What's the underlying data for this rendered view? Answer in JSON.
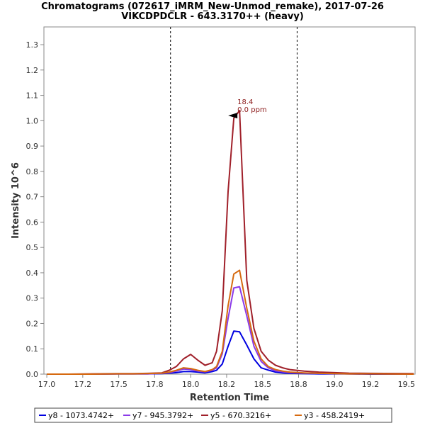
{
  "chart_data": {
    "type": "line",
    "title": "Chromatograms (072617_iMRM_New-Unmod_remake), 2017-07-26",
    "subtitle": "VIKCDPDCLR - 643.3170++ (heavy)",
    "xlabel": "Retention Time",
    "ylabel": "Intensity 10^6",
    "xlim": [
      16.98,
      19.56
    ],
    "ylim": [
      0,
      1.37
    ],
    "x_ticks": [
      "17.0",
      "17.2",
      "17.5",
      "17.8",
      "18.0",
      "18.2",
      "18.5",
      "18.8",
      "19.0",
      "19.2",
      "19.5"
    ],
    "x_tick_values": [
      17.0,
      17.25,
      17.5,
      17.75,
      18.0,
      18.25,
      18.5,
      18.75,
      19.0,
      19.25,
      19.5
    ],
    "y_ticks": [
      "0.0",
      "0.1",
      "0.2",
      "0.3",
      "0.4",
      "0.5",
      "0.6",
      "0.7",
      "0.8",
      "0.9",
      "1.0",
      "1.1",
      "1.2",
      "1.3"
    ],
    "y_tick_values": [
      0.0,
      0.1,
      0.2,
      0.3,
      0.4,
      0.5,
      0.6,
      0.7,
      0.8,
      0.9,
      1.0,
      1.1,
      1.2,
      1.3
    ],
    "integration_bounds": [
      17.86,
      18.74
    ],
    "peak_annotation": {
      "x": 18.32,
      "y": 1.02,
      "label": "18.4",
      "ppm": "0.0 ppm"
    },
    "grid": false,
    "legend_position": "bottom",
    "series": [
      {
        "name": "y8 - 1073.4742+",
        "color": "#0000e0",
        "x": [
          17.0,
          17.15,
          17.3,
          17.5,
          17.6,
          17.7,
          17.8,
          17.85,
          17.9,
          17.95,
          18.0,
          18.05,
          18.1,
          18.15,
          18.18,
          18.22,
          18.26,
          18.3,
          18.34,
          18.39,
          18.44,
          18.49,
          18.54,
          18.59,
          18.64,
          18.69,
          18.79,
          18.89,
          19.0,
          19.1,
          19.25,
          19.55
        ],
        "values": [
          0.0,
          0.0,
          0.0,
          0.001,
          0.001,
          0.001,
          0.002,
          0.004,
          0.006,
          0.01,
          0.01,
          0.008,
          0.005,
          0.01,
          0.015,
          0.04,
          0.11,
          0.17,
          0.167,
          0.115,
          0.06,
          0.025,
          0.016,
          0.008,
          0.005,
          0.003,
          0.002,
          0.001,
          0.001,
          0.001,
          0.0,
          0.0
        ]
      },
      {
        "name": "y7 - 945.3792+",
        "color": "#8b3ae8",
        "x": [
          17.0,
          17.15,
          17.3,
          17.5,
          17.6,
          17.7,
          17.8,
          17.85,
          17.9,
          17.95,
          18.0,
          18.05,
          18.1,
          18.15,
          18.18,
          18.22,
          18.26,
          18.3,
          18.34,
          18.39,
          18.44,
          18.49,
          18.54,
          18.59,
          18.64,
          18.69,
          18.79,
          18.89,
          19.0,
          19.1,
          19.25,
          19.55
        ],
        "values": [
          0.0,
          0.0,
          0.0,
          0.001,
          0.001,
          0.001,
          0.003,
          0.006,
          0.012,
          0.02,
          0.018,
          0.012,
          0.009,
          0.015,
          0.025,
          0.08,
          0.22,
          0.34,
          0.345,
          0.23,
          0.11,
          0.05,
          0.025,
          0.013,
          0.009,
          0.006,
          0.004,
          0.003,
          0.002,
          0.001,
          0.001,
          0.0
        ]
      },
      {
        "name": "y5 - 670.3216+",
        "color": "#a0202a",
        "x": [
          17.0,
          17.15,
          17.3,
          17.5,
          17.6,
          17.7,
          17.8,
          17.85,
          17.9,
          17.95,
          18.0,
          18.05,
          18.1,
          18.15,
          18.18,
          18.22,
          18.26,
          18.3,
          18.34,
          18.39,
          18.44,
          18.49,
          18.54,
          18.59,
          18.64,
          18.69,
          18.79,
          18.89,
          19.0,
          19.1,
          19.25,
          19.55
        ],
        "values": [
          0.0,
          0.0,
          0.001,
          0.002,
          0.002,
          0.003,
          0.005,
          0.015,
          0.03,
          0.06,
          0.078,
          0.055,
          0.035,
          0.045,
          0.09,
          0.25,
          0.72,
          1.01,
          1.04,
          0.37,
          0.18,
          0.09,
          0.055,
          0.035,
          0.025,
          0.018,
          0.012,
          0.008,
          0.006,
          0.004,
          0.003,
          0.002
        ]
      },
      {
        "name": "y3 - 458.2419+",
        "color": "#d66a10",
        "x": [
          17.0,
          17.15,
          17.3,
          17.5,
          17.6,
          17.7,
          17.8,
          17.85,
          17.9,
          17.95,
          18.0,
          18.05,
          18.1,
          18.15,
          18.18,
          18.22,
          18.26,
          18.3,
          18.34,
          18.39,
          18.44,
          18.49,
          18.54,
          18.59,
          18.64,
          18.69,
          18.79,
          18.89,
          19.0,
          19.1,
          19.25,
          19.55
        ],
        "values": [
          0.0,
          0.0,
          0.0,
          0.001,
          0.001,
          0.002,
          0.004,
          0.008,
          0.015,
          0.025,
          0.022,
          0.015,
          0.01,
          0.018,
          0.03,
          0.09,
          0.27,
          0.395,
          0.41,
          0.26,
          0.13,
          0.06,
          0.03,
          0.018,
          0.012,
          0.008,
          0.005,
          0.003,
          0.002,
          0.001,
          0.001,
          0.0
        ]
      }
    ]
  }
}
